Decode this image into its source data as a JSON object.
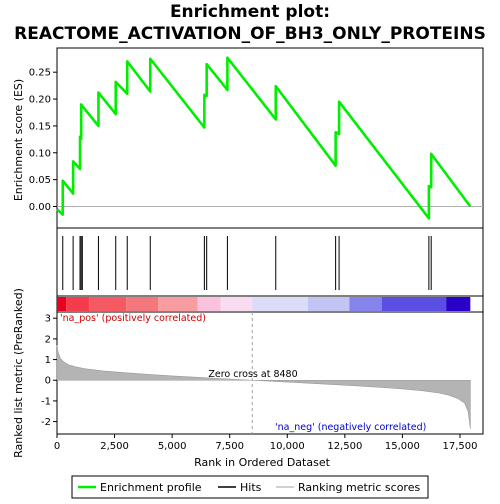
{
  "chart_data": {
    "type": "line",
    "title_line1": "Enrichment plot:",
    "title_line2": "REACTOME_ACTIVATION_OF_BH3_ONLY_PROTEINS",
    "es_panel": {
      "ylabel": "Enrichment score (ES)",
      "ylim": [
        -0.04,
        0.295
      ],
      "yticks": [
        0.0,
        0.05,
        0.1,
        0.15,
        0.2,
        0.25
      ],
      "ytick_labels": [
        "0.00",
        "0.05",
        "0.10",
        "0.15",
        "0.20",
        "0.25"
      ],
      "line_color": "#00ee00",
      "series": [
        {
          "x": [
            0,
            250,
            250,
            700,
            700,
            1000,
            1000,
            1050,
            1050,
            1100,
            1100,
            1800,
            1800,
            2550,
            2550,
            3050,
            3050,
            4050,
            4050,
            6400,
            6400,
            6500,
            6500,
            7400,
            7400,
            9500,
            9500,
            12100,
            12100,
            12250,
            12250,
            16150,
            16150,
            16250,
            16250,
            17950
          ],
          "y": [
            -0.005,
            -0.015,
            0.048,
            0.024,
            0.084,
            0.07,
            0.13,
            0.126,
            0.19,
            0.187,
            0.187,
            0.15,
            0.212,
            0.172,
            0.232,
            0.21,
            0.27,
            0.214,
            0.275,
            0.147,
            0.208,
            0.206,
            0.265,
            0.217,
            0.277,
            0.162,
            0.224,
            0.076,
            0.138,
            0.135,
            0.195,
            -0.022,
            0.038,
            0.036,
            0.098,
            0.0
          ]
        }
      ],
      "hits_x": [
        250,
        700,
        1000,
        1050,
        1100,
        1800,
        2550,
        3050,
        4050,
        6400,
        6500,
        7400,
        9500,
        12100,
        12250,
        16150,
        16250
      ]
    },
    "metric_panel": {
      "ylabel": "Ranked list metric (PreRanked)",
      "xlabel": "Rank in Ordered Dataset",
      "ylim": [
        -2.6,
        3.3
      ],
      "yticks": [
        -2,
        -1,
        0,
        1,
        2,
        3
      ],
      "ytick_labels": [
        "-2",
        "-1",
        "0",
        "1",
        "2",
        "3"
      ],
      "xlim": [
        0,
        18500
      ],
      "xticks": [
        0,
        2500,
        5000,
        7500,
        10000,
        12500,
        15000,
        17500
      ],
      "xtick_labels": [
        "0",
        "2,500",
        "5,000",
        "7,500",
        "10,000",
        "12,500",
        "15,000",
        "17,500"
      ],
      "profile_x": [
        0,
        50,
        150,
        300,
        500,
        800,
        1200,
        2000,
        3000,
        4000,
        5000,
        6000,
        7000,
        8000,
        8480,
        9000,
        10000,
        11000,
        12000,
        13000,
        14000,
        15000,
        15800,
        16500,
        17000,
        17400,
        17700,
        17850,
        17950
      ],
      "profile_y": [
        1.7,
        1.35,
        1.05,
        0.88,
        0.75,
        0.65,
        0.56,
        0.45,
        0.36,
        0.28,
        0.21,
        0.15,
        0.09,
        0.03,
        0.0,
        -0.03,
        -0.09,
        -0.15,
        -0.21,
        -0.27,
        -0.34,
        -0.42,
        -0.5,
        -0.6,
        -0.72,
        -0.88,
        -1.1,
        -1.5,
        -2.35
      ],
      "zero_cross_rank": 8480,
      "zero_cross_label": "Zero cross at 8480",
      "pos_label": "'na_pos' (positively correlated)",
      "neg_label": "'na_neg' (negatively correlated)",
      "pos_color": "#cc0000",
      "neg_color": "#0000cc"
    },
    "heat_strip": {
      "x_ranges": [
        [
          0,
          400
        ],
        [
          400,
          1400
        ],
        [
          1400,
          3000
        ],
        [
          3000,
          4400
        ],
        [
          4400,
          6100
        ],
        [
          6100,
          7100
        ],
        [
          7100,
          8480
        ],
        [
          8480,
          10900
        ],
        [
          10900,
          12700
        ],
        [
          12700,
          14100
        ],
        [
          14100,
          16900
        ],
        [
          16900,
          17950
        ]
      ],
      "colors": [
        "#e8001c",
        "#f43c4c",
        "#f55a62",
        "#f4777c",
        "#f79ca0",
        "#fbc2de",
        "#fadcf2",
        "#dcdcf8",
        "#c2c4f4",
        "#8484ec",
        "#5a4fe2",
        "#2800c8"
      ]
    },
    "legend": {
      "items": [
        {
          "label": "Enrichment profile",
          "color": "#00ee00"
        },
        {
          "label": "Hits",
          "color": "#000000"
        },
        {
          "label": "Ranking metric scores",
          "color": "#c0c0c0"
        }
      ]
    }
  }
}
